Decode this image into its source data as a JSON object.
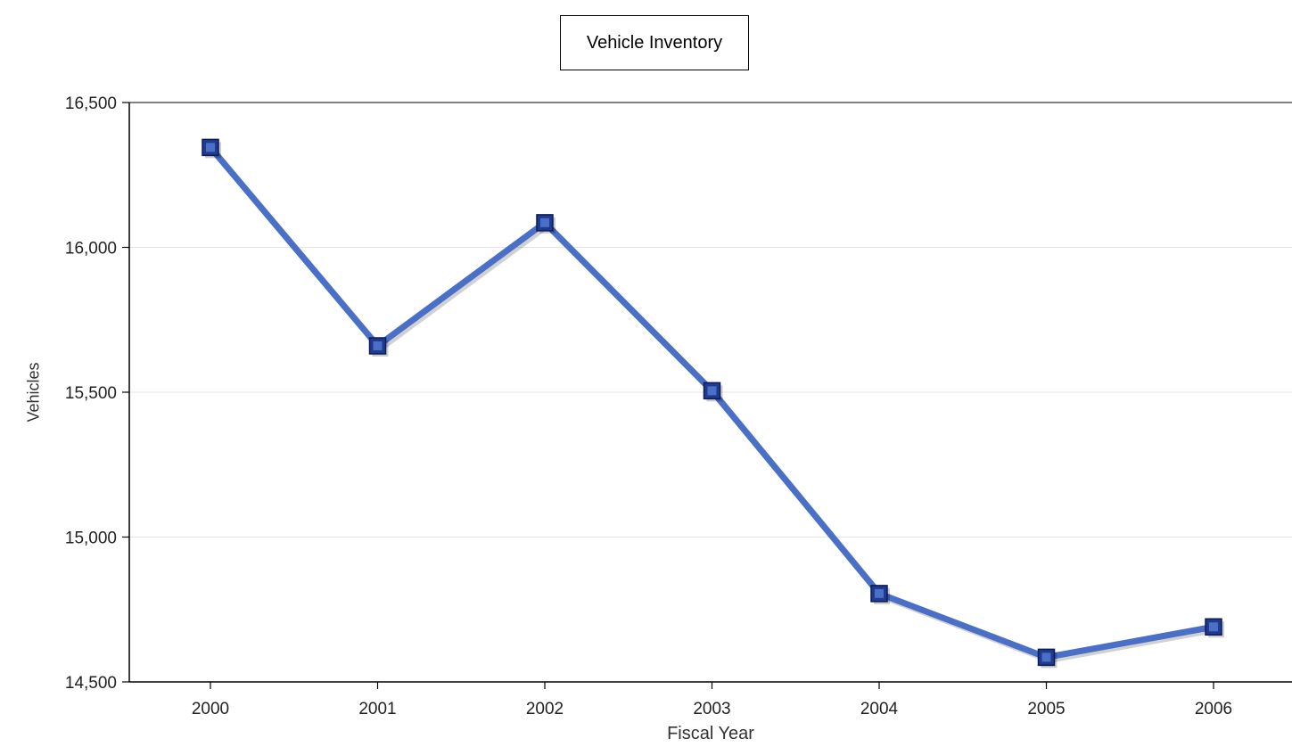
{
  "chart_data": {
    "type": "line",
    "title": "Vehicle Inventory",
    "xlabel": "Fiscal Year",
    "ylabel": "Vehicles",
    "categories": [
      "2000",
      "2001",
      "2002",
      "2003",
      "2004",
      "2005",
      "2006"
    ],
    "series": [
      {
        "values": [
          16345,
          15660,
          16085,
          15505,
          14805,
          14585,
          14690
        ],
        "color": "#4a6fc7",
        "marker": "square"
      }
    ],
    "ylim": [
      14500,
      16500
    ],
    "yticks": [
      "16,500",
      "16,000",
      "15,500",
      "15,000",
      "14,500"
    ],
    "ytick_values": [
      16500,
      16000,
      15500,
      15000,
      14500
    ],
    "grid": true,
    "legend": "none"
  }
}
